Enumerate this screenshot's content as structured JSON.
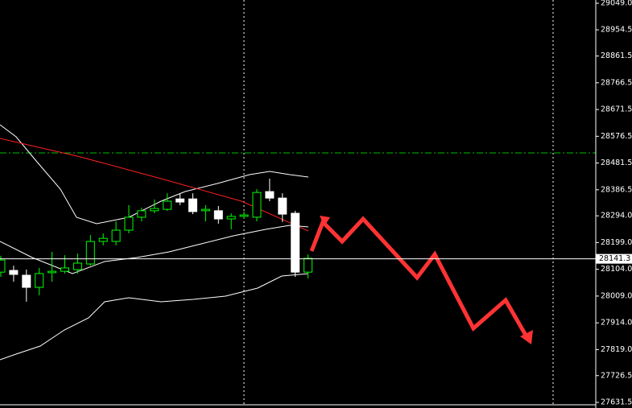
{
  "chart_data": {
    "type": "candlestick",
    "up_color": "#00ff00",
    "down_color": "#ffffff",
    "ylim": [
      27631.5,
      29049.0
    ],
    "yticks": [
      {
        "value": 29049.0,
        "label": "29049.0"
      },
      28954.5,
      28861.5,
      28766.5,
      28671.5,
      28576.5,
      28481.5,
      28386.5,
      {
        "value": 28294.0,
        "label": "28294.0"
      },
      {
        "value": 28199.0,
        "label": "28199.0"
      },
      {
        "value": 28104.0,
        "label": "28104.0"
      },
      {
        "value": 28009.0,
        "label": "28009.0"
      },
      {
        "value": 27914.0,
        "label": "27914.0"
      },
      {
        "value": 27819.0,
        "label": "27819.0"
      },
      27726.5,
      27631.5
    ],
    "current_price": 28141.3,
    "open": [
      28094,
      28100,
      28083,
      28040,
      28092,
      28097,
      28103,
      28123,
      28203,
      28203,
      28243,
      28289,
      28312,
      28317,
      28354,
      28354,
      28312,
      28312,
      28283,
      28292,
      28289,
      28380,
      28357,
      28303,
      28094
    ],
    "high": [
      28152,
      28117,
      28103,
      28109,
      28166,
      28154,
      28160,
      28226,
      28232,
      28274,
      28332,
      28323,
      28352,
      28374,
      28374,
      28374,
      28332,
      28329,
      28303,
      28309,
      28389,
      28426,
      28374,
      28312,
      28157
    ],
    "low": [
      28077,
      28060,
      27989,
      28012,
      28060,
      28089,
      28089,
      28117,
      28189,
      28189,
      28232,
      28274,
      28303,
      28312,
      28332,
      28300,
      28274,
      28266,
      28246,
      28283,
      28274,
      28346,
      28272,
      28077,
      28072
    ],
    "close": [
      28137,
      28086,
      28040,
      28089,
      28097,
      28109,
      28126,
      28203,
      28214,
      28243,
      28289,
      28312,
      28320,
      28346,
      28343,
      28309,
      28317,
      28283,
      28292,
      28297,
      28377,
      28357,
      28300,
      28094,
      28143
    ]
  }
}
